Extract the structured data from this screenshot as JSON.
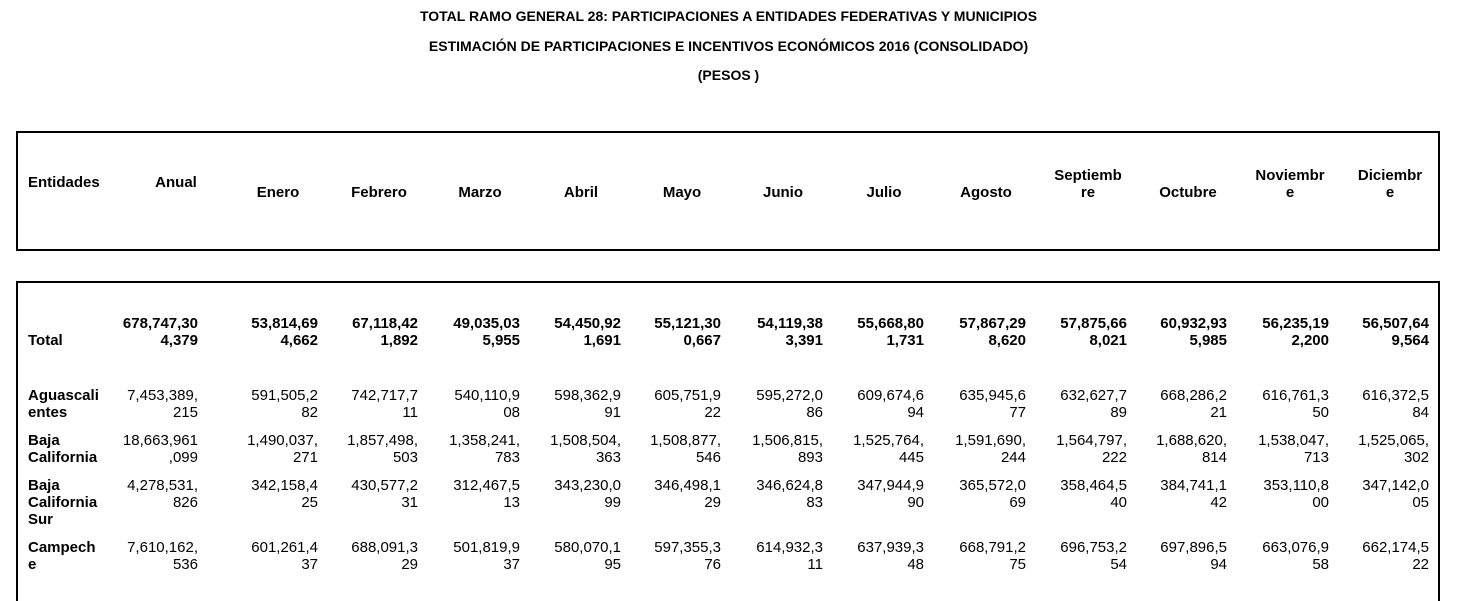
{
  "title": {
    "line1": "TOTAL RAMO GENERAL 28: PARTICIPACIONES A ENTIDADES FEDERATIVAS Y MUNICIPIOS",
    "line2": "ESTIMACIÓN DE PARTICIPACIONES E INCENTIVOS ECONÓMICOS 2016 (CONSOLIDADO)",
    "line3": "(PESOS )"
  },
  "table": {
    "entity_header": "Entidades",
    "columns": [
      {
        "l1": "Anual",
        "l2": ""
      },
      {
        "l1": "Enero",
        "l2": ""
      },
      {
        "l1": "Febrero",
        "l2": ""
      },
      {
        "l1": "Marzo",
        "l2": ""
      },
      {
        "l1": "Abril",
        "l2": ""
      },
      {
        "l1": "Mayo",
        "l2": ""
      },
      {
        "l1": "Junio",
        "l2": ""
      },
      {
        "l1": "Julio",
        "l2": ""
      },
      {
        "l1": "Agosto",
        "l2": ""
      },
      {
        "l1": "Septiemb",
        "l2": "re"
      },
      {
        "l1": "Octubre",
        "l2": ""
      },
      {
        "l1": "Noviembr",
        "l2": "e"
      },
      {
        "l1": "Diciembr",
        "l2": "e"
      }
    ],
    "rows": [
      {
        "name": [
          "Total"
        ],
        "bold": true,
        "values": [
          [
            "678,747,30",
            "4,379"
          ],
          [
            "53,814,69",
            "4,662"
          ],
          [
            "67,118,42",
            "1,892"
          ],
          [
            "49,035,03",
            "5,955"
          ],
          [
            "54,450,92",
            "1,691"
          ],
          [
            "55,121,30",
            "0,667"
          ],
          [
            "54,119,38",
            "3,391"
          ],
          [
            "55,668,80",
            "1,731"
          ],
          [
            "57,867,29",
            "8,620"
          ],
          [
            "57,875,66",
            "8,021"
          ],
          [
            "60,932,93",
            "5,985"
          ],
          [
            "56,235,19",
            "2,200"
          ],
          [
            "56,507,64",
            "9,564"
          ]
        ]
      },
      {
        "name": [
          "Aguascali",
          "entes"
        ],
        "bold": false,
        "values": [
          [
            "7,453,389,",
            "215"
          ],
          [
            "591,505,2",
            "82"
          ],
          [
            "742,717,7",
            "11"
          ],
          [
            "540,110,9",
            "08"
          ],
          [
            "598,362,9",
            "91"
          ],
          [
            "605,751,9",
            "22"
          ],
          [
            "595,272,0",
            "86"
          ],
          [
            "609,674,6",
            "94"
          ],
          [
            "635,945,6",
            "77"
          ],
          [
            "632,627,7",
            "89"
          ],
          [
            "668,286,2",
            "21"
          ],
          [
            "616,761,3",
            "50"
          ],
          [
            "616,372,5",
            "84"
          ]
        ]
      },
      {
        "name": [
          "Baja",
          "California"
        ],
        "bold": false,
        "values": [
          [
            "18,663,961",
            ",099"
          ],
          [
            "1,490,037,",
            "271"
          ],
          [
            "1,857,498,",
            "503"
          ],
          [
            "1,358,241,",
            "783"
          ],
          [
            "1,508,504,",
            "363"
          ],
          [
            "1,508,877,",
            "546"
          ],
          [
            "1,506,815,",
            "893"
          ],
          [
            "1,525,764,",
            "445"
          ],
          [
            "1,591,690,",
            "244"
          ],
          [
            "1,564,797,",
            "222"
          ],
          [
            "1,688,620,",
            "814"
          ],
          [
            "1,538,047,",
            "713"
          ],
          [
            "1,525,065,",
            "302"
          ]
        ]
      },
      {
        "name": [
          "Baja",
          "California",
          "Sur"
        ],
        "bold": false,
        "values": [
          [
            "4,278,531,",
            "826"
          ],
          [
            "342,158,4",
            "25"
          ],
          [
            "430,577,2",
            "31"
          ],
          [
            "312,467,5",
            "13"
          ],
          [
            "343,230,0",
            "99"
          ],
          [
            "346,498,1",
            "29"
          ],
          [
            "346,624,8",
            "83"
          ],
          [
            "347,944,9",
            "90"
          ],
          [
            "365,572,0",
            "69"
          ],
          [
            "358,464,5",
            "40"
          ],
          [
            "384,741,1",
            "42"
          ],
          [
            "353,110,8",
            "00"
          ],
          [
            "347,142,0",
            "05"
          ]
        ]
      },
      {
        "name": [
          "Campech",
          "e"
        ],
        "bold": false,
        "values": [
          [
            "7,610,162,",
            "536"
          ],
          [
            "601,261,4",
            "37"
          ],
          [
            "688,091,3",
            "29"
          ],
          [
            "501,819,9",
            "37"
          ],
          [
            "580,070,1",
            "95"
          ],
          [
            "597,355,3",
            "76"
          ],
          [
            "614,932,3",
            "11"
          ],
          [
            "637,939,3",
            "48"
          ],
          [
            "668,791,2",
            "75"
          ],
          [
            "696,753,2",
            "54"
          ],
          [
            "697,896,5",
            "94"
          ],
          [
            "663,076,9",
            "58"
          ],
          [
            "662,174,5",
            "22"
          ]
        ]
      }
    ]
  }
}
